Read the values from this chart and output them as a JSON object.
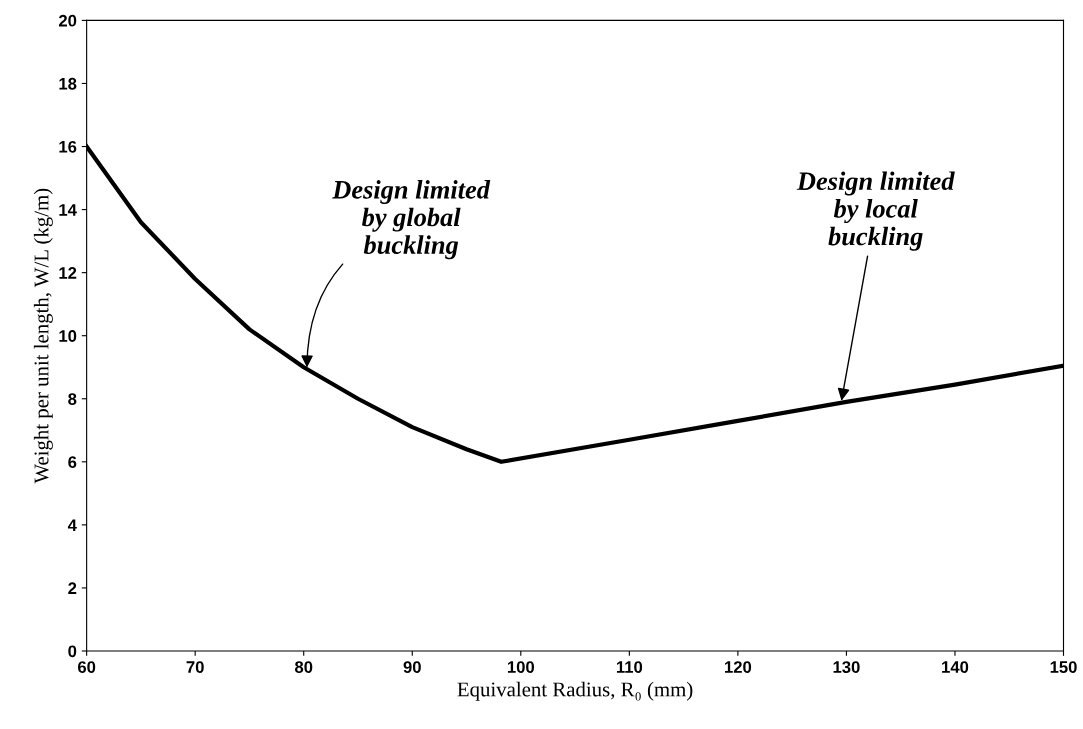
{
  "chart_data": {
    "type": "line",
    "xlabel": "Equivalent Radius, R₀ (mm)",
    "ylabel": "Weight per unit length, W/L (kg/m)",
    "series": [
      {
        "color": "#000000",
        "x": [
          60,
          65,
          70,
          75,
          80,
          85,
          90,
          95,
          98.2,
          110,
          120,
          130,
          140,
          150
        ],
        "values": [
          16,
          13.6,
          11.8,
          10.2,
          9.0,
          8.0,
          7.1,
          6.4,
          6.0,
          6.7,
          7.3,
          7.9,
          8.45,
          9.05
        ]
      }
    ],
    "xlim": [
      60,
      150
    ],
    "xticks": [
      60,
      70,
      80,
      90,
      100,
      110,
      120,
      130,
      140,
      150
    ],
    "ylim": [
      0,
      20
    ],
    "yticks": [
      0,
      2,
      4,
      6,
      8,
      10,
      12,
      14,
      16,
      18,
      20
    ],
    "annotations": [
      {
        "text": "Design limited\nby global\nbuckling",
        "x": 80.3,
        "y": 8.9
      },
      {
        "text": "Design limited\nby local\nbuckling",
        "x": 129.5,
        "y": 7.85
      }
    ],
    "grid": false,
    "legend": false,
    "marker": "none",
    "line_style": "solid"
  }
}
